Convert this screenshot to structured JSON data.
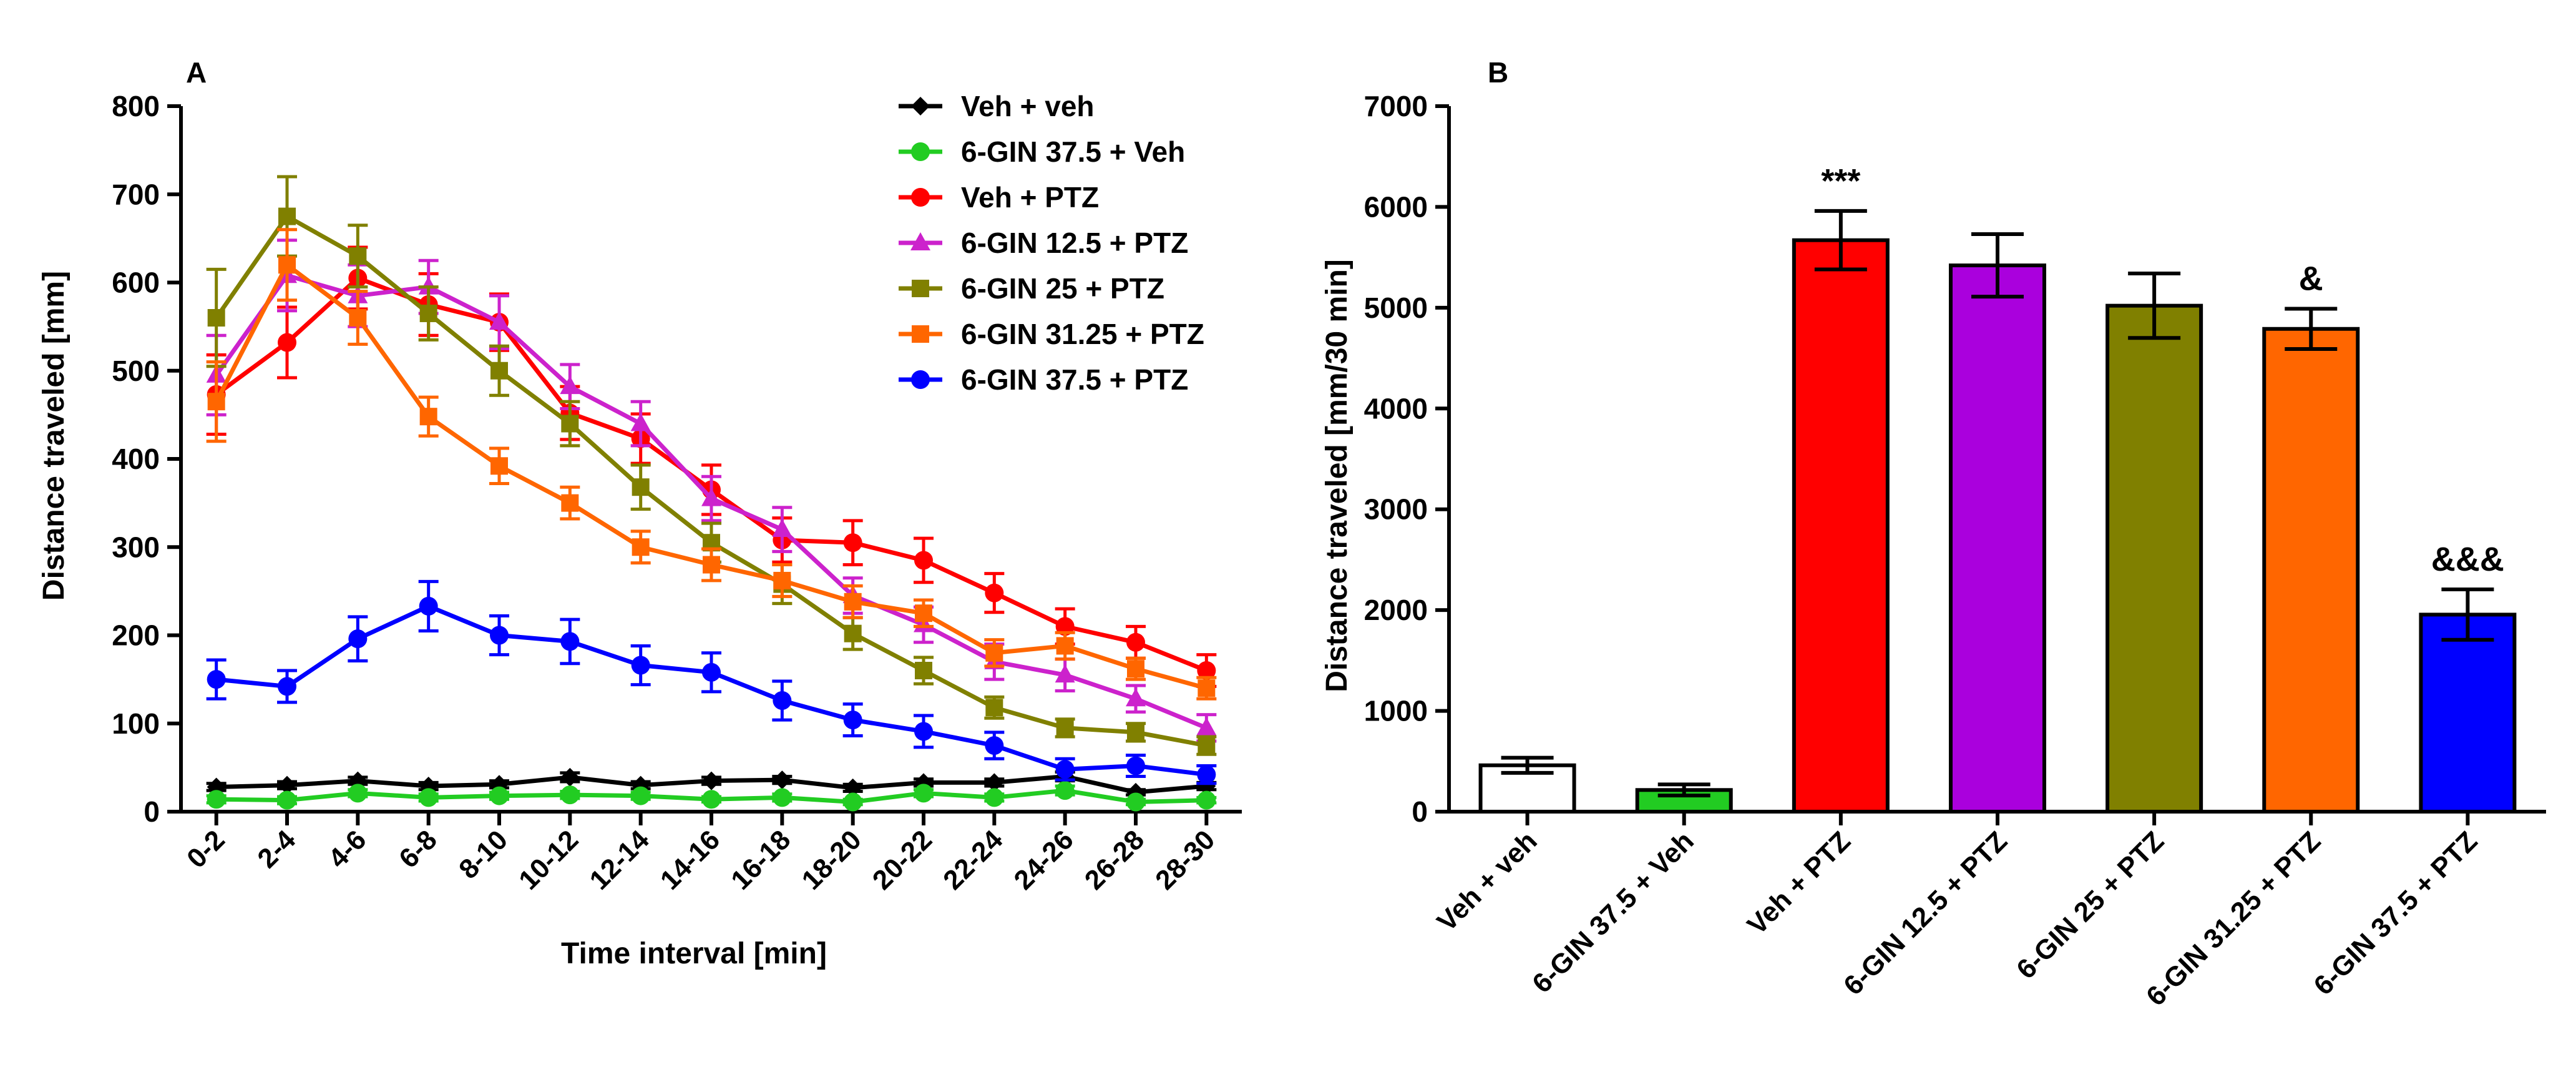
{
  "chart_data": [
    {
      "panel_label": "A",
      "type": "line",
      "title": "",
      "xlabel": "Time interval [min]",
      "ylabel": "Distance traveled [mm]",
      "categories": [
        "0-2",
        "2-4",
        "4-6",
        "6-8",
        "8-10",
        "10-12",
        "12-14",
        "14-16",
        "16-18",
        "18-20",
        "20-22",
        "22-24",
        "24-26",
        "26-28",
        "28-30"
      ],
      "ylim": [
        0,
        800
      ],
      "yticks": [
        0,
        100,
        200,
        300,
        400,
        500,
        600,
        700,
        800
      ],
      "legend_position": "top-right",
      "grid": false,
      "error_bars": "SEM",
      "series": [
        {
          "name": "Veh + veh",
          "color": "#000000",
          "marker": "diamond",
          "values": [
            28,
            30,
            35,
            29,
            31,
            39,
            30,
            35,
            36,
            27,
            33,
            33,
            40,
            22,
            29
          ],
          "errors": [
            4,
            4,
            4,
            4,
            4,
            5,
            4,
            4,
            4,
            4,
            4,
            4,
            5,
            3,
            4
          ]
        },
        {
          "name": "6-GIN 37.5 + Veh",
          "color": "#22cc22",
          "marker": "circle",
          "values": [
            14,
            13,
            21,
            16,
            18,
            19,
            18,
            14,
            16,
            11,
            21,
            16,
            24,
            11,
            13
          ],
          "errors": [
            4,
            4,
            4,
            4,
            4,
            4,
            4,
            3,
            4,
            3,
            4,
            4,
            5,
            3,
            3
          ]
        },
        {
          "name": "Veh + PTZ",
          "color": "#ff0000",
          "marker": "circle",
          "values": [
            473,
            532,
            605,
            575,
            555,
            452,
            423,
            365,
            308,
            305,
            285,
            248,
            210,
            192,
            160
          ],
          "errors": [
            45,
            40,
            35,
            35,
            32,
            30,
            28,
            28,
            25,
            25,
            25,
            22,
            20,
            18,
            18
          ]
        },
        {
          "name": "6-GIN 12.5 + PTZ",
          "color": "#cc22cc",
          "marker": "triangle",
          "values": [
            495,
            608,
            585,
            595,
            555,
            482,
            440,
            355,
            320,
            245,
            212,
            170,
            155,
            128,
            95
          ],
          "errors": [
            45,
            40,
            35,
            30,
            30,
            25,
            25,
            25,
            25,
            20,
            20,
            20,
            18,
            15,
            15
          ]
        },
        {
          "name": "6-GIN 25 + PTZ",
          "color": "#808000",
          "marker": "square",
          "values": [
            560,
            675,
            630,
            565,
            500,
            440,
            368,
            305,
            258,
            202,
            160,
            118,
            95,
            90,
            75
          ],
          "errors": [
            55,
            45,
            35,
            30,
            28,
            25,
            25,
            22,
            22,
            18,
            15,
            12,
            10,
            10,
            10
          ]
        },
        {
          "name": "6-GIN 31.25 + PTZ",
          "color": "#ff6600",
          "marker": "square",
          "values": [
            465,
            620,
            560,
            448,
            392,
            350,
            300,
            280,
            262,
            238,
            225,
            180,
            188,
            162,
            140
          ],
          "errors": [
            45,
            40,
            30,
            22,
            20,
            18,
            18,
            18,
            18,
            18,
            15,
            15,
            15,
            12,
            12
          ]
        },
        {
          "name": "6-GIN 37.5 + PTZ",
          "color": "#0000ff",
          "marker": "circle",
          "values": [
            150,
            142,
            196,
            233,
            200,
            193,
            166,
            158,
            126,
            104,
            91,
            75,
            48,
            52,
            42
          ],
          "errors": [
            22,
            18,
            25,
            28,
            22,
            25,
            22,
            22,
            22,
            18,
            18,
            15,
            12,
            12,
            10
          ]
        }
      ]
    },
    {
      "panel_label": "B",
      "type": "bar",
      "title": "",
      "xlabel": "",
      "ylabel": "Distance traveled [mm/30 min]",
      "ylim": [
        0,
        7000
      ],
      "yticks": [
        0,
        1000,
        2000,
        3000,
        4000,
        5000,
        6000,
        7000
      ],
      "grid": false,
      "error_bars": "SEM",
      "categories": [
        "Veh + veh",
        "6-GIN 37.5 + Veh",
        "Veh + PTZ",
        "6-GIN 12.5 + PTZ",
        "6-GIN 25 + PTZ",
        "6-GIN 31.25 + PTZ",
        "6-GIN 37.5 + PTZ"
      ],
      "values": [
        460,
        215,
        5670,
        5420,
        5020,
        4790,
        1955
      ],
      "errors": [
        75,
        55,
        290,
        310,
        320,
        200,
        250
      ],
      "colors": [
        "#ffffff",
        "#22cc22",
        "#ff0000",
        "#aa00dd",
        "#808000",
        "#ff6600",
        "#0000ff"
      ],
      "annotations": [
        "",
        "",
        "***",
        "",
        "",
        "&",
        "&&&"
      ]
    }
  ]
}
